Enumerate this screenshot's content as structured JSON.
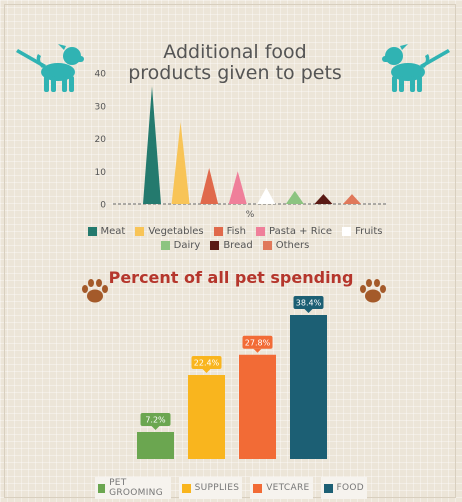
{
  "chart_data": [
    {
      "type": "bar",
      "title": "Additional food products given to pets",
      "xlabel": "%",
      "ylabel": "",
      "ylim": [
        0,
        40
      ],
      "yticks": [
        0,
        10,
        20,
        30,
        40
      ],
      "categories": [
        "Meat",
        "Vegetables",
        "Fish",
        "Pasta + Rice",
        "Fruits",
        "Dairy",
        "Bread",
        "Others"
      ],
      "values": [
        36,
        25,
        11,
        10,
        5,
        4,
        3,
        3
      ],
      "colors": [
        "#247a6e",
        "#f8c457",
        "#e0694b",
        "#ef7f9a",
        "#ffffff",
        "#8cc480",
        "#5a1a14",
        "#e0785a"
      ],
      "legend_position": "bottom"
    },
    {
      "type": "bar",
      "title": "Percent of all pet spending",
      "categories": [
        "PET GROOMING",
        "SUPPLIES",
        "VETCARE",
        "FOOD"
      ],
      "values": [
        7.2,
        22.4,
        27.8,
        38.4
      ],
      "data_labels": [
        "7.2%",
        "22.4%",
        "27.8%",
        "38.4%"
      ],
      "colors": [
        "#6ba650",
        "#f9b51e",
        "#f26b36",
        "#1c5f74"
      ],
      "legend_position": "bottom"
    }
  ],
  "icon_colors": {
    "dog": "#30b3b3",
    "paw": "#a45a2a"
  }
}
